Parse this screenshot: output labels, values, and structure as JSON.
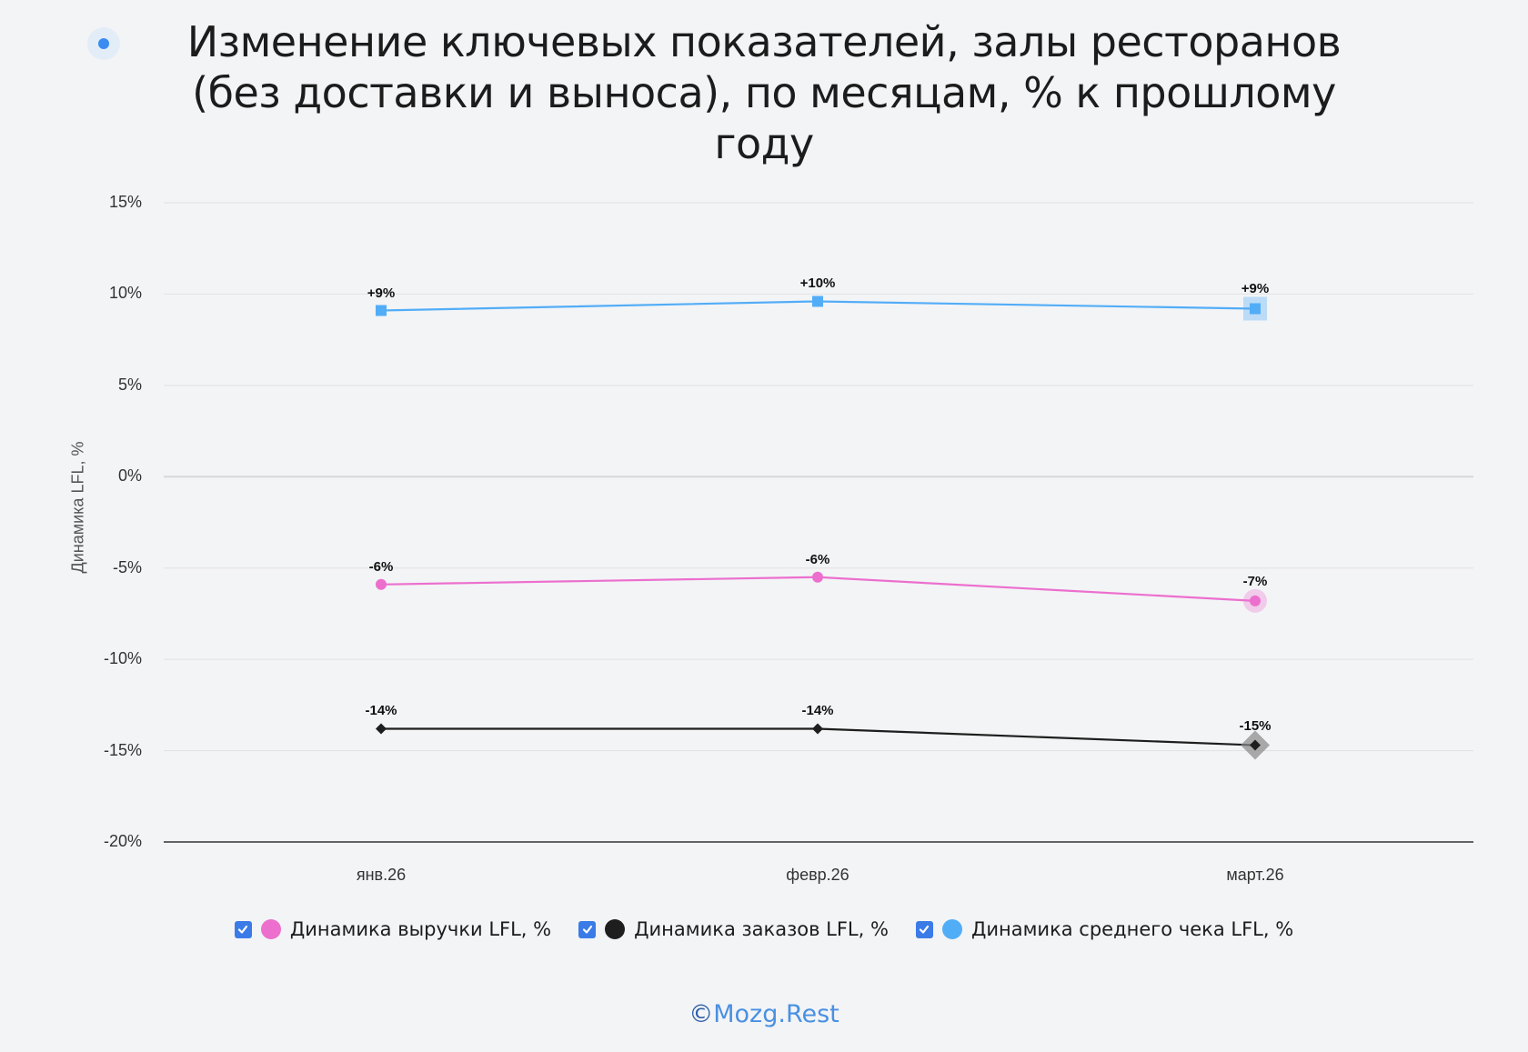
{
  "title": "Изменение ключевых показателей, залы ресторанов (без доставки и выноса), по месяцам, % к прошлому году",
  "title_lines": [
    "Изменение ключевых показателей, залы ресторанов",
    "(без доставки и выноса), по месяцам, % к прошлому",
    "году"
  ],
  "footer": {
    "copyright_symbol": "©",
    "brand": "Mozg.Rest"
  },
  "colors": {
    "revenue": "#ec6fce",
    "orders": "#1e1e1e",
    "avg_check": "#52adf7",
    "checkbox": "#3b7be8",
    "accent": "#4a90e2"
  },
  "chart_data": {
    "type": "line",
    "title": "Изменение ключевых показателей, залы ресторанов (без доставки и выноса), по месяцам, % к прошлому году",
    "xlabel": "",
    "ylabel": "Динамика LFL, %",
    "categories": [
      "янв.26",
      "февр.26",
      "март.26"
    ],
    "ylim": [
      -20,
      15
    ],
    "yticks": [
      "15%",
      "10%",
      "5%",
      "0%",
      "-5%",
      "-10%",
      "-15%",
      "-20%"
    ],
    "ytick_values": [
      15,
      10,
      5,
      0,
      -5,
      -10,
      -15,
      -20
    ],
    "grid": true,
    "legend_position": "bottom",
    "series": [
      {
        "name": "Динамика выручки LFL, %",
        "color": "#ec6fce",
        "marker": "circle",
        "values": [
          -5.9,
          -5.5,
          -6.8
        ],
        "labels": [
          "-6%",
          "-6%",
          "-7%"
        ]
      },
      {
        "name": "Динамика заказов LFL, %",
        "color": "#1e1e1e",
        "marker": "diamond",
        "values": [
          -13.8,
          -13.8,
          -14.7
        ],
        "labels": [
          "-14%",
          "-14%",
          "-15%"
        ]
      },
      {
        "name": "Динамика среднего чека LFL, %",
        "color": "#52adf7",
        "marker": "square",
        "values": [
          9.1,
          9.6,
          9.2
        ],
        "labels": [
          "+9%",
          "+10%",
          "+9%"
        ]
      }
    ]
  }
}
